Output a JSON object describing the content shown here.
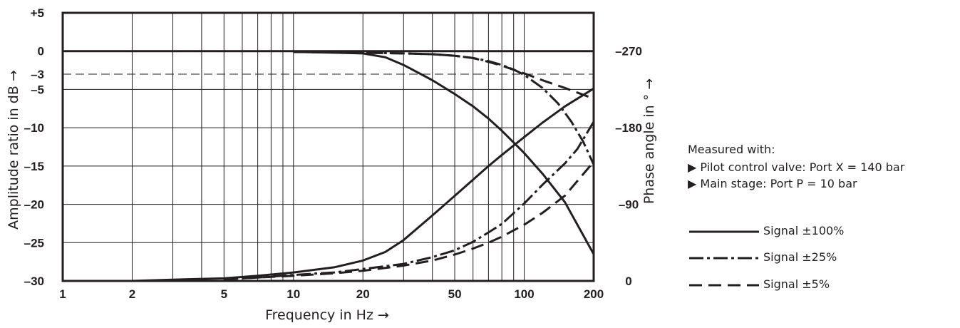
{
  "chart_data": {
    "type": "line",
    "title": "",
    "xlabel": "Frequency in Hz →",
    "ylabel": "Amplitude ratio in dB →",
    "y2label": "Phase angle in ° →",
    "xscale": "log",
    "xlim": [
      1,
      200
    ],
    "ylim": [
      -30,
      5
    ],
    "y2lim": [
      0,
      -270
    ],
    "x_ticks": [
      1,
      2,
      5,
      10,
      20,
      50,
      100,
      200
    ],
    "x_tick_labels": [
      "1",
      "2",
      "5",
      "10",
      "20",
      "50",
      "100",
      "200"
    ],
    "y_ticks": [
      5,
      0,
      -3,
      -5,
      -10,
      -15,
      -20,
      -25,
      -30
    ],
    "y_tick_labels": [
      "+5",
      "0",
      "–3",
      "–5",
      "–10",
      "–15",
      "–20",
      "–25",
      "–30"
    ],
    "y2_ticks": [
      -270,
      -180,
      -90,
      0
    ],
    "y2_tick_labels": [
      "–270",
      "–180",
      "–90",
      "0"
    ],
    "reference_line": {
      "y": -3,
      "style": "dashed"
    },
    "grid": true,
    "series": [
      {
        "name": "Signal ±100%",
        "style": "solid",
        "quantity": "amplitude",
        "x": [
          10,
          15,
          20,
          25,
          30,
          40,
          50,
          60,
          70,
          80,
          100,
          120,
          150,
          200
        ],
        "y": [
          -0.1,
          -0.2,
          -0.3,
          -0.8,
          -1.8,
          -3.8,
          -5.6,
          -7.2,
          -8.8,
          -10.4,
          -13.3,
          -16,
          -19.7,
          -26.5
        ]
      },
      {
        "name": "Signal ±25%",
        "style": "dashdot",
        "quantity": "amplitude",
        "x": [
          10,
          20,
          30,
          40,
          50,
          60,
          70,
          80,
          90,
          100,
          120,
          140,
          160,
          180,
          200
        ],
        "y": [
          -0.1,
          -0.2,
          -0.3,
          -0.4,
          -0.6,
          -0.9,
          -1.3,
          -1.8,
          -2.4,
          -3.1,
          -4.8,
          -6.8,
          -9.2,
          -11.8,
          -14.8
        ]
      },
      {
        "name": "Signal ±5%",
        "style": "dashed",
        "quantity": "amplitude",
        "x": [
          10,
          20,
          30,
          40,
          50,
          60,
          70,
          80,
          100,
          120,
          150,
          200
        ],
        "y": [
          -0.1,
          -0.2,
          -0.3,
          -0.4,
          -0.6,
          -0.9,
          -1.4,
          -1.9,
          -2.9,
          -3.8,
          -4.8,
          -6.2
        ]
      },
      {
        "name": "Signal ±100%",
        "style": "solid",
        "quantity": "phase",
        "x": [
          2,
          3,
          5,
          7,
          10,
          15,
          20,
          25,
          30,
          40,
          50,
          60,
          70,
          80,
          100,
          120,
          150,
          200
        ],
        "y": [
          0,
          -1.5,
          -3,
          -6,
          -10,
          -16,
          -24,
          -34,
          -48,
          -77,
          -100,
          -119,
          -135,
          -148,
          -169,
          -186,
          -205,
          -226
        ]
      },
      {
        "name": "Signal ±25%",
        "style": "dashdot",
        "quantity": "phase",
        "x": [
          5,
          7,
          10,
          15,
          20,
          30,
          40,
          50,
          60,
          70,
          80,
          100,
          120,
          150,
          170,
          200
        ],
        "y": [
          -2,
          -4,
          -7,
          -10,
          -14,
          -20,
          -28,
          -36,
          -46,
          -57,
          -67,
          -91,
          -113,
          -138,
          -155,
          -187
        ]
      },
      {
        "name": "Signal ±5%",
        "style": "dashed",
        "quantity": "phase",
        "x": [
          5,
          7,
          10,
          15,
          20,
          30,
          40,
          50,
          60,
          70,
          80,
          100,
          120,
          150,
          200
        ],
        "y": [
          -2,
          -4,
          -6,
          -9,
          -12,
          -18,
          -24,
          -31,
          -38,
          -45,
          -52,
          -66,
          -80,
          -100,
          -140
        ]
      }
    ]
  },
  "legend": {
    "header": "Measured with:",
    "conditions": [
      "▶ Pilot control valve: Port X = 140 bar",
      "▶ Main stage: Port P = 10 bar"
    ],
    "entries": [
      {
        "label": "Signal ±100%",
        "style": "solid"
      },
      {
        "label": "Signal ±25%",
        "style": "dashdot"
      },
      {
        "label": "Signal ±5%",
        "style": "dashed"
      }
    ]
  }
}
